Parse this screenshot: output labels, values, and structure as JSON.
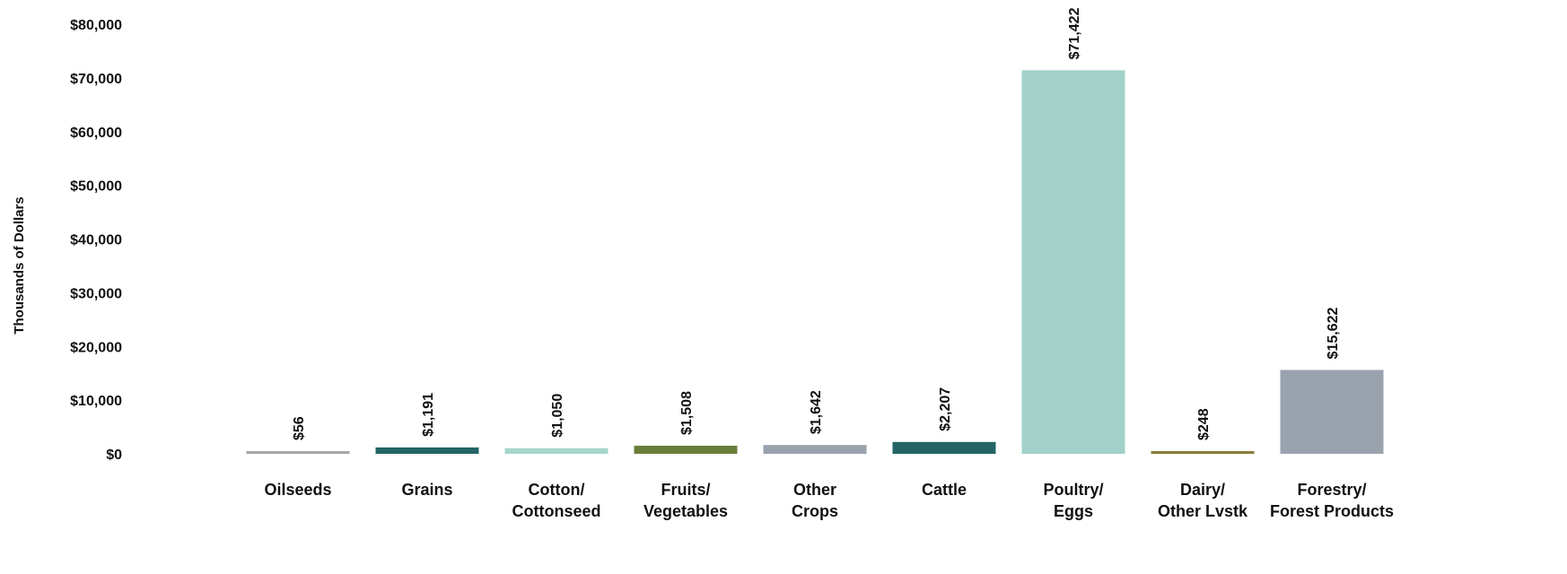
{
  "chart_data": {
    "type": "bar",
    "title": "",
    "xlabel": "",
    "ylabel": "Thousands  of Dollars",
    "ylim": [
      0,
      80000
    ],
    "grid": false,
    "legend": "none",
    "y_ticks": [
      "$0",
      "$10,000",
      "$20,000",
      "$30,000",
      "$40,000",
      "$50,000",
      "$60,000",
      "$70,000",
      "$80,000"
    ],
    "y_tick_values": [
      0,
      10000,
      20000,
      30000,
      40000,
      50000,
      60000,
      70000,
      80000
    ],
    "categories": [
      [
        "Oilseeds"
      ],
      [
        "Grains"
      ],
      [
        "Cotton/",
        "Cottonseed"
      ],
      [
        "Fruits/",
        "Vegetables"
      ],
      [
        "Other",
        "Crops"
      ],
      [
        "Cattle"
      ],
      [
        "Poultry/",
        "Eggs"
      ],
      [
        "Dairy/",
        "Other Lvstk"
      ],
      [
        "Forestry/",
        "Forest Products"
      ]
    ],
    "values": [
      56,
      1191,
      1050,
      1508,
      1642,
      2207,
      71422,
      248,
      15622
    ],
    "data_labels": [
      "$56",
      "$1,191",
      "$1,050",
      "$1,508",
      "$1,642",
      "$2,207",
      "$71,422",
      "$248",
      "$15,622"
    ],
    "colors": [
      "#a6a6a6",
      "#236565",
      "#a6d5cc",
      "#6a7d3a",
      "#9aa3ad",
      "#236565",
      "#a1d1c9",
      "#8b7b3a",
      "#9aa3ad"
    ]
  }
}
